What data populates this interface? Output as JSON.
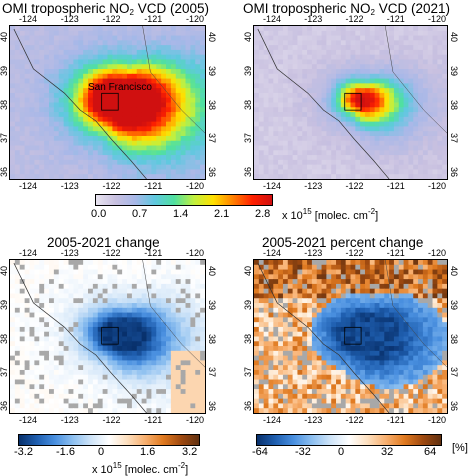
{
  "panels": {
    "tl": {
      "title_pre": "OMI tropospheric NO",
      "title_sub": "2",
      "title_post": " VCD (2005)",
      "label": "San Francisco",
      "pattern": "tl"
    },
    "tr": {
      "title_pre": "OMI tropospheric NO",
      "title_sub": "2",
      "title_post": " VCD (2021)",
      "pattern": "tr"
    },
    "bl": {
      "title": "2005-2021 change",
      "pattern": "bl"
    },
    "br": {
      "title": "2005-2021 percent change",
      "pattern": "br"
    }
  },
  "axes": {
    "lon_ticks": [
      "-124",
      "-123",
      "-122",
      "-121",
      "-120"
    ],
    "lat_ticks": [
      "40",
      "39",
      "38",
      "37",
      "36"
    ]
  },
  "colorbars": {
    "top": {
      "ticks": [
        "0.0",
        "0.7",
        "1.4",
        "2.1",
        "2.8"
      ],
      "unit_pre": "x 10",
      "unit_sup": "15",
      "unit_post": " [molec. cm",
      "unit_sup2": "-2",
      "unit_end": "]",
      "colors": [
        "#e8e4f0",
        "#c8c0e0",
        "#a8b8e8",
        "#60c8e0",
        "#50e0a0",
        "#c0f040",
        "#ffe000",
        "#ff8000",
        "#ff2000",
        "#d01010"
      ]
    },
    "bottom_left": {
      "ticks": [
        "-3.2",
        "-1.6",
        "0",
        "1.6",
        "3.2"
      ],
      "unit_pre": "x 10",
      "unit_sup": "15",
      "unit_post": " [molec. cm",
      "unit_sup2": "-2",
      "unit_end": "]",
      "colors": [
        "#08306b",
        "#1f5fb0",
        "#4a90e0",
        "#8ec0f0",
        "#cfe4f8",
        "#ffffff",
        "#fde0c0",
        "#f8b070",
        "#e07a20",
        "#a04a10",
        "#603010"
      ]
    },
    "bottom_right": {
      "ticks": [
        "-64",
        "-32",
        "0",
        "32",
        "64"
      ],
      "unit": "[%]",
      "colors": [
        "#08306b",
        "#1f5fb0",
        "#4a90e0",
        "#8ec0f0",
        "#cfe4f8",
        "#ffffff",
        "#fde0c0",
        "#f8b070",
        "#e07a20",
        "#a04a10",
        "#603010"
      ]
    }
  }
}
